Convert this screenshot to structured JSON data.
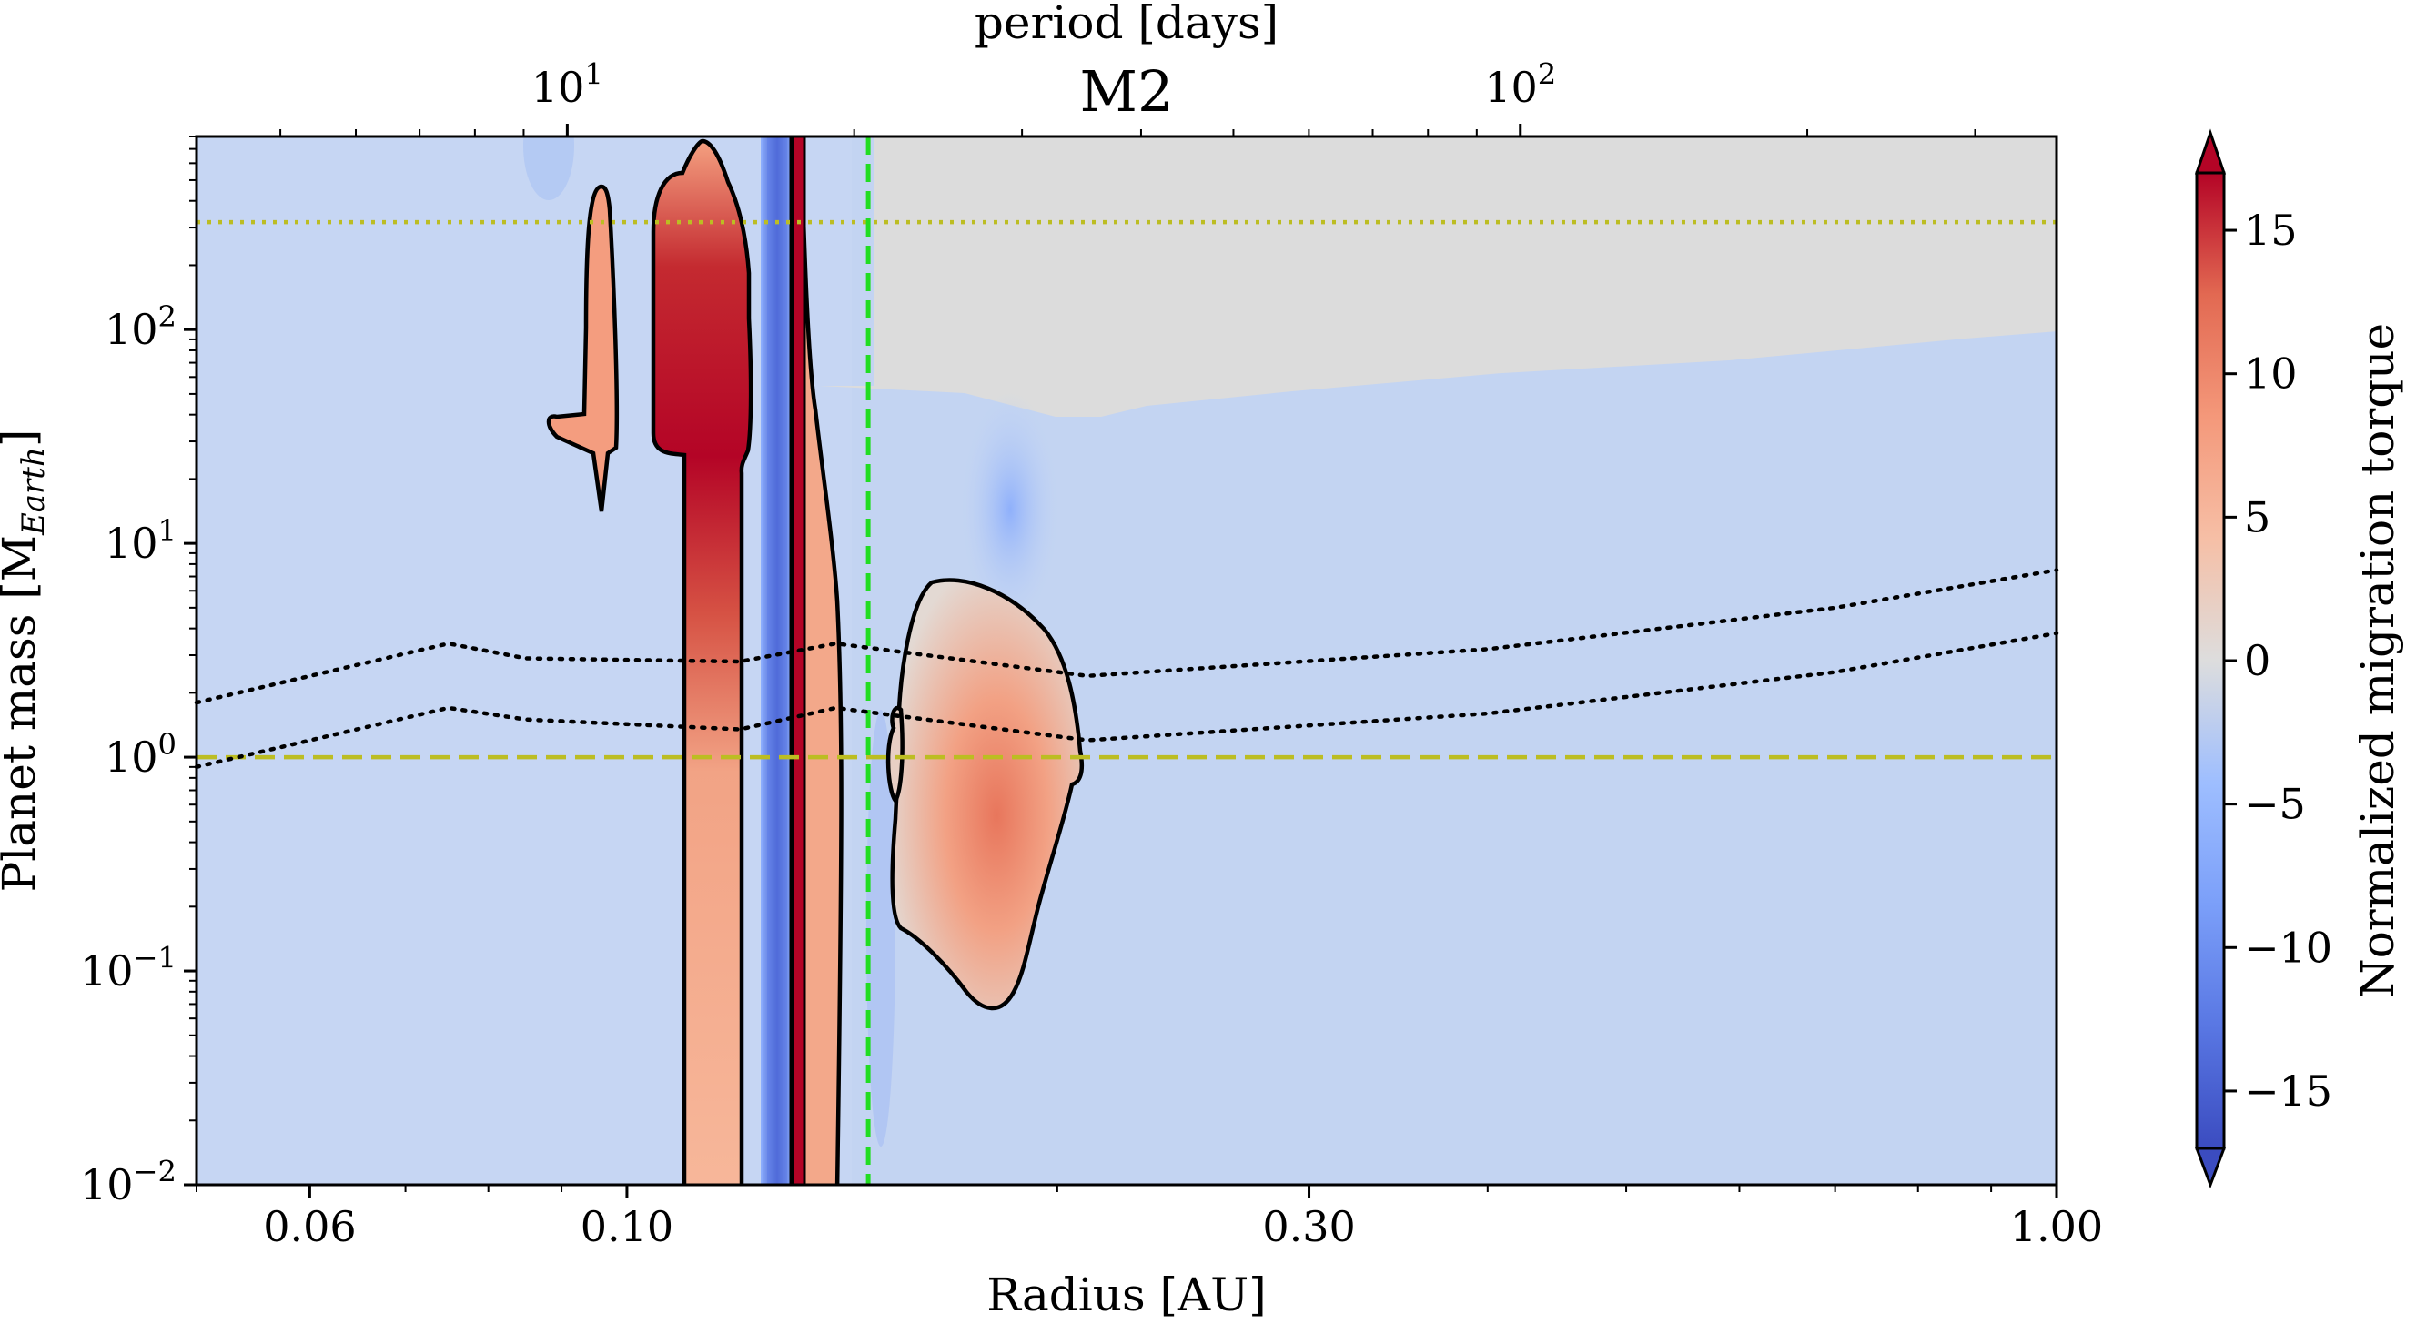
{
  "chart_data": {
    "type": "heatmap",
    "title": "M2",
    "xlabel": "Radius [AU]",
    "ylabel_parts": [
      "Planet mass [M",
      "Earth",
      "]"
    ],
    "top_axis_label": "period [days]",
    "colorbar_label": "Normalized migration torque",
    "x_scale": "log",
    "y_scale": "log",
    "xlim": [
      0.05,
      1.0
    ],
    "ylim": [
      0.01,
      800
    ],
    "x_ticks": [
      {
        "value": 0.06,
        "label": "0.06"
      },
      {
        "value": 0.1,
        "label": "0.10"
      },
      {
        "value": 0.3,
        "label": "0.30"
      },
      {
        "value": 1.0,
        "label": "1.00"
      }
    ],
    "y_ticks": [
      {
        "exp": -2,
        "base": "10",
        "sup": "−2"
      },
      {
        "exp": -1,
        "base": "10",
        "sup": "−1"
      },
      {
        "exp": 0,
        "base": "10",
        "sup": "0"
      },
      {
        "exp": 1,
        "base": "10",
        "sup": "1"
      },
      {
        "exp": 2,
        "base": "10",
        "sup": "2"
      }
    ],
    "top_ticks": [
      {
        "period": 10,
        "base": "10",
        "sup": "1"
      },
      {
        "period": 100,
        "base": "10",
        "sup": "2"
      }
    ],
    "period_conversion": "P = 365.25 * a^1.5 (stellar mass 1 Msun)",
    "colorbar": {
      "min": -17,
      "max": 17,
      "extend": "both",
      "colormap": "coolwarm",
      "ticks": [
        {
          "value": 15,
          "label": "15"
        },
        {
          "value": 10,
          "label": "10"
        },
        {
          "value": 5,
          "label": "5"
        },
        {
          "value": 0,
          "label": "0"
        },
        {
          "value": -5,
          "label": "−5"
        },
        {
          "value": -10,
          "label": "−10"
        },
        {
          "value": -15,
          "label": "−15"
        }
      ]
    },
    "reference_lines": [
      {
        "orientation": "horizontal",
        "mass": 318,
        "style": "dotted",
        "color": "#bcbd22",
        "name": "jupiter-mass-line"
      },
      {
        "orientation": "horizontal",
        "mass": 1,
        "style": "dashed",
        "color": "#bcbd22",
        "name": "earth-mass-line"
      },
      {
        "orientation": "vertical",
        "radius": 0.1475,
        "style": "dashed",
        "color": "#22dd22",
        "name": "green-dashed-line"
      }
    ],
    "regions": [
      {
        "name": "grey-no-data-region",
        "torque": null,
        "color": "#dcdcdc"
      },
      {
        "name": "outward-band-1",
        "torque": 8
      },
      {
        "name": "outward-band-2",
        "torque": 10
      },
      {
        "name": "outward-band-3",
        "torque": 9
      },
      {
        "name": "outward-lobe",
        "torque": 7
      },
      {
        "name": "inward-strong-strip",
        "torque": -12
      },
      {
        "name": "background",
        "torque": -3.5
      }
    ],
    "dotted_curves": [
      {
        "name": "upper-dotted-curve",
        "points": [
          [
            0.05,
            1.8
          ],
          [
            0.075,
            3.4
          ],
          [
            0.085,
            2.9
          ],
          [
            0.12,
            2.8
          ],
          [
            0.14,
            3.4
          ],
          [
            0.21,
            2.4
          ],
          [
            0.4,
            3.2
          ],
          [
            0.7,
            5.0
          ],
          [
            1.0,
            7.5
          ]
        ]
      },
      {
        "name": "lower-dotted-curve",
        "points": [
          [
            0.05,
            0.9
          ],
          [
            0.075,
            1.7
          ],
          [
            0.085,
            1.5
          ],
          [
            0.12,
            1.35
          ],
          [
            0.14,
            1.7
          ],
          [
            0.21,
            1.2
          ],
          [
            0.4,
            1.6
          ],
          [
            0.7,
            2.5
          ],
          [
            1.0,
            3.8
          ]
        ]
      }
    ]
  }
}
